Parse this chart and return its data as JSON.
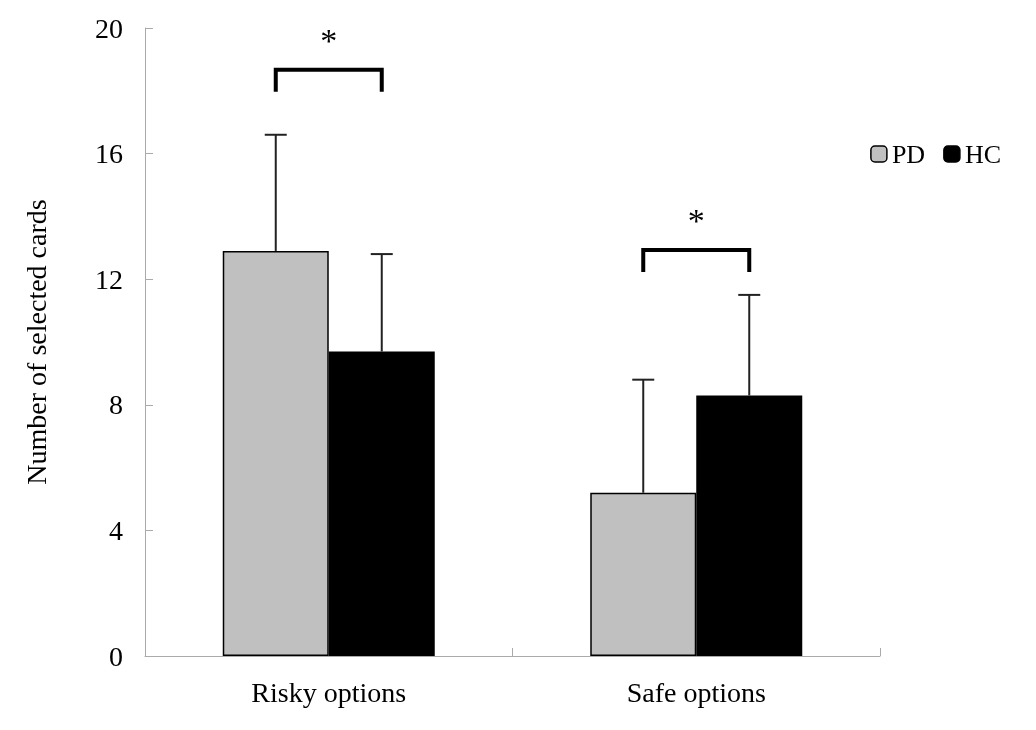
{
  "chart_data": {
    "type": "bar",
    "ylabel": "Number of selected cards",
    "categories": [
      "Risky options",
      "Safe options"
    ],
    "series": [
      {
        "name": "PD",
        "color": "#c0c0c0",
        "values": [
          12.9,
          5.2
        ],
        "errors": [
          3.7,
          3.6
        ]
      },
      {
        "name": "HC",
        "color": "#000000",
        "values": [
          9.7,
          8.3
        ],
        "errors": [
          3.1,
          3.2
        ]
      }
    ],
    "ylim": [
      0,
      20
    ],
    "yticks": [
      0,
      4,
      8,
      12,
      16,
      20
    ],
    "grid": false,
    "legend": "top right",
    "annotations": [
      "*",
      "*"
    ]
  }
}
